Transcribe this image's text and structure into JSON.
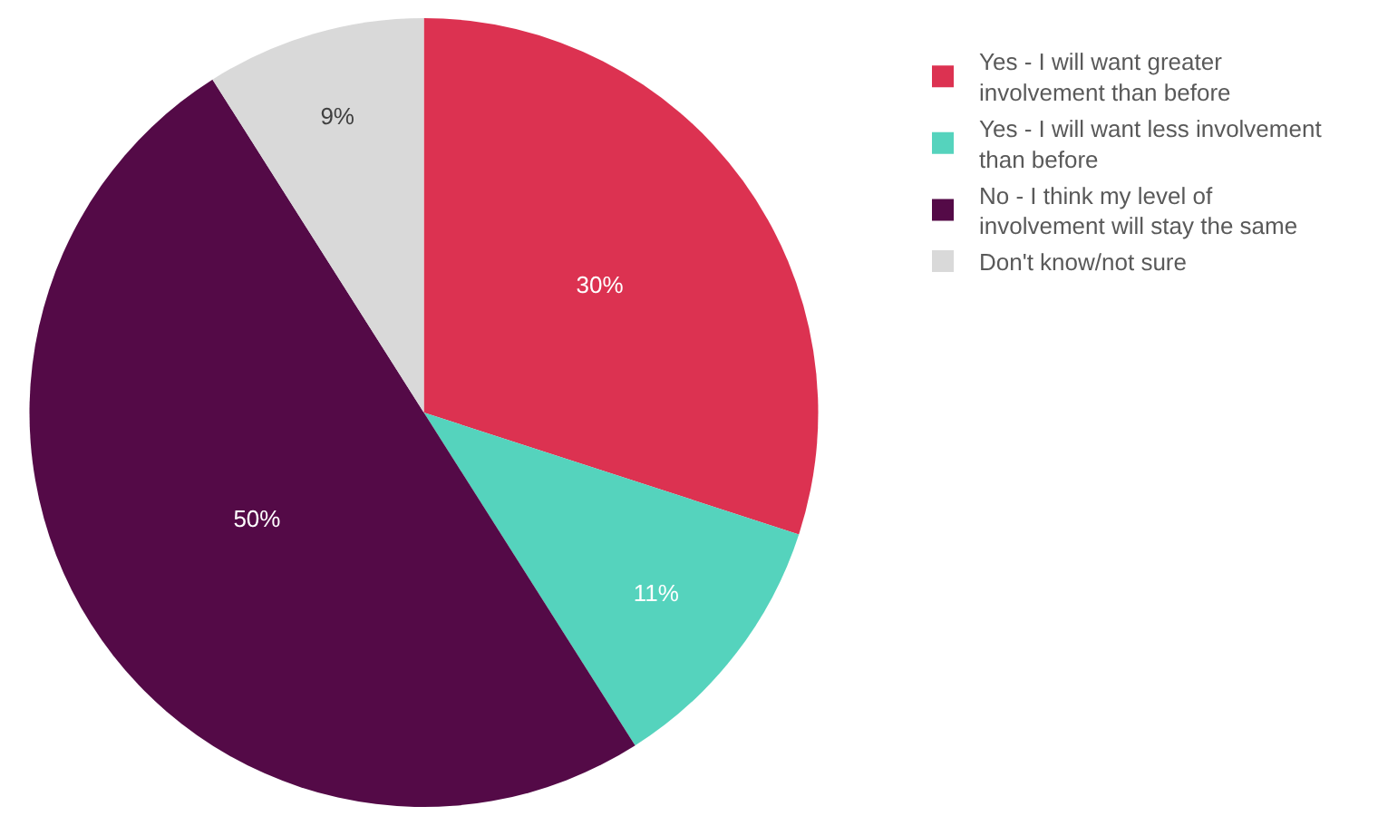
{
  "chart_data": {
    "type": "pie",
    "categories": [
      "Yes - I will want greater involvement than before",
      "Yes - I will want less involvement than before",
      "No - I think my level of involvement will stay the same",
      "Don't know/not sure"
    ],
    "values": [
      30,
      11,
      50,
      9
    ],
    "colors": [
      "#dc3251",
      "#55d3bd",
      "#540a47",
      "#d9d9d9"
    ],
    "value_labels": [
      "30%",
      "11%",
      "50%",
      "9%"
    ],
    "legend": "top right"
  }
}
